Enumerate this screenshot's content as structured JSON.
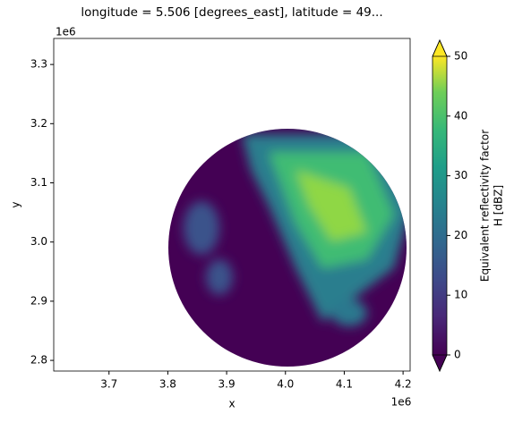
{
  "chart_data": {
    "type": "image",
    "title": "longitude = 5.506 [degrees_east], latitude = 49...",
    "xlabel": "x",
    "ylabel": "y",
    "x_offset_label": "1e6",
    "y_offset_label": "1e6",
    "xlim": [
      3606000,
      4212000
    ],
    "xticks": [
      {
        "value": 3700000,
        "label": "3.7"
      },
      {
        "value": 3800000,
        "label": "3.8"
      },
      {
        "value": 3900000,
        "label": "3.9"
      },
      {
        "value": 4000000,
        "label": "4.0"
      },
      {
        "value": 4100000,
        "label": "4.1"
      },
      {
        "value": 4200000,
        "label": "4.2"
      }
    ],
    "ylim": [
      2782000,
      3344000
    ],
    "yticks": [
      {
        "value": 2800000,
        "label": "2.8"
      },
      {
        "value": 2900000,
        "label": "2.9"
      },
      {
        "value": 3000000,
        "label": "3.0"
      },
      {
        "value": 3100000,
        "label": "3.1"
      },
      {
        "value": 3200000,
        "label": "3.2"
      },
      {
        "value": 3300000,
        "label": "3.3"
      }
    ],
    "colorbar": {
      "label": [
        "Equivalent reflectivity factor",
        "H [dBZ]"
      ],
      "lim": [
        0,
        50
      ],
      "ticks": [
        0,
        10,
        20,
        30,
        40,
        50
      ],
      "colormap": "viridis",
      "extend": "both"
    }
  }
}
